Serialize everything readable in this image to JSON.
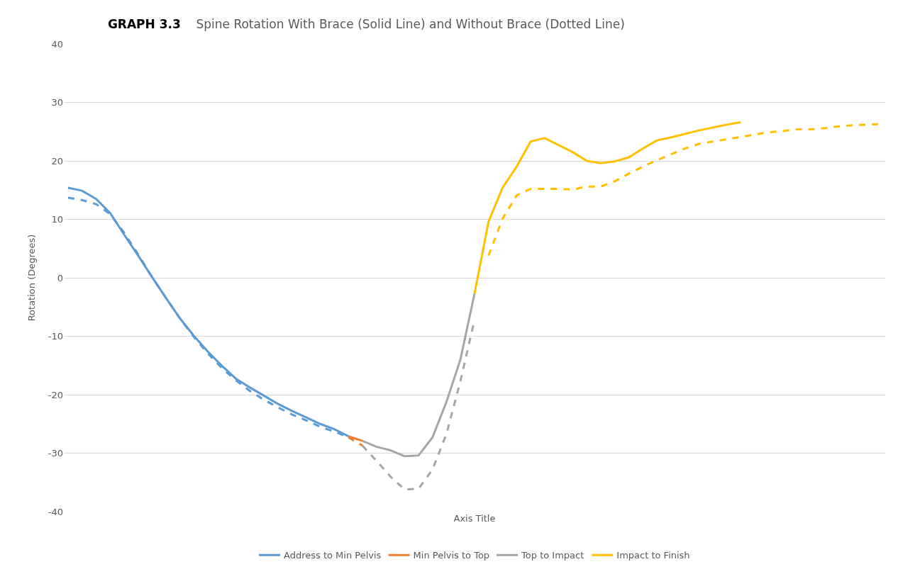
{
  "chart_data": {
    "type": "line",
    "title": "GRAPH 3.3",
    "subtitle": "Spine Rotation With Brace (Solid Line) and Without Brace (Dotted Line)",
    "xlabel": "Axis Title",
    "ylabel": "Rotation (Degrees)",
    "categories": [
      null,
      null,
      null,
      null,
      null,
      null,
      null,
      null,
      null,
      null,
      null,
      null,
      null,
      null,
      null,
      null,
      null,
      null,
      null,
      null,
      null,
      null,
      null,
      null,
      null,
      null,
      null,
      null,
      null,
      null,
      null,
      null,
      null,
      null,
      null,
      null,
      null,
      null,
      null,
      null,
      null,
      null,
      null,
      null,
      null,
      null,
      null,
      null,
      null,
      null,
      null,
      null,
      null,
      null,
      null,
      null,
      null,
      null,
      null
    ],
    "ylim": [
      -40,
      40
    ],
    "yticks": [
      -40,
      -30,
      -20,
      -10,
      0,
      10,
      20,
      30,
      40
    ],
    "grid": "y",
    "legend": "bottom",
    "marker": "none",
    "series": [
      {
        "name": "Address to Min Pelvis",
        "color": "#5b9bd5",
        "line_style": "solid",
        "values": [
          15.4,
          14.9,
          13.5,
          11.1,
          7.4,
          3.8,
          0.1,
          -3.5,
          -7.0,
          -10.0,
          -12.7,
          -15.1,
          -17.3,
          -18.8,
          -20.2,
          -21.6,
          -22.8,
          -23.9,
          -25.0,
          -25.9,
          -27.1,
          null,
          null,
          null,
          null,
          null,
          null,
          null,
          null,
          null,
          null,
          null,
          null,
          null,
          null,
          null,
          null,
          null,
          null,
          null,
          null,
          null,
          null,
          null,
          null,
          null,
          null,
          null,
          null,
          null,
          null,
          null,
          null,
          null,
          null,
          null,
          null,
          null,
          null
        ]
      },
      {
        "name": "Min Pelvis to Top",
        "color": "#ed7d31",
        "line_style": "solid",
        "values": [
          null,
          null,
          null,
          null,
          null,
          null,
          null,
          null,
          null,
          null,
          null,
          null,
          null,
          null,
          null,
          null,
          null,
          null,
          null,
          null,
          -27.1,
          -27.9,
          null,
          null,
          null,
          null,
          null,
          null,
          null,
          null,
          null,
          null,
          null,
          null,
          null,
          null,
          null,
          null,
          null,
          null,
          null,
          null,
          null,
          null,
          null,
          null,
          null,
          null,
          null,
          null,
          null,
          null,
          null,
          null,
          null,
          null,
          null,
          null,
          null
        ]
      },
      {
        "name": "Top to Impact",
        "color": "#a5a5a5",
        "line_style": "solid",
        "values": [
          null,
          null,
          null,
          null,
          null,
          null,
          null,
          null,
          null,
          null,
          null,
          null,
          null,
          null,
          null,
          null,
          null,
          null,
          null,
          null,
          null,
          -27.9,
          -28.9,
          -29.5,
          -30.5,
          -30.4,
          -27.3,
          -21.2,
          -13.9,
          -2.7,
          null,
          null,
          null,
          null,
          null,
          null,
          null,
          null,
          null,
          null,
          null,
          null,
          null,
          null,
          null,
          null,
          null,
          null,
          null,
          null,
          null,
          null,
          null,
          null,
          null,
          null,
          null,
          null,
          null
        ]
      },
      {
        "name": "Impact to Finish",
        "color": "#ffc000",
        "line_style": "solid",
        "values": [
          null,
          null,
          null,
          null,
          null,
          null,
          null,
          null,
          null,
          null,
          null,
          null,
          null,
          null,
          null,
          null,
          null,
          null,
          null,
          null,
          null,
          null,
          null,
          null,
          null,
          null,
          null,
          null,
          null,
          -2.7,
          9.6,
          15.4,
          19,
          23.3,
          23.9,
          22.7,
          21.5,
          20,
          19.6,
          19.9,
          20.6,
          22.1,
          23.5,
          24,
          24.6,
          25.2,
          25.7,
          26.2,
          26.6,
          null,
          null,
          null,
          null,
          null,
          null,
          null,
          null,
          null,
          null
        ]
      },
      {
        "color": "#5b9bd5",
        "line_style": "dashed",
        "values": [
          13.7,
          13.3,
          12.6,
          10.9,
          7.7,
          4.0,
          0.1,
          -3.5,
          -7.0,
          -10.2,
          -13.0,
          -15.5,
          -17.6,
          -19.4,
          -20.9,
          -22.2,
          -23.4,
          -24.4,
          -25.5,
          -26.3,
          -27.3,
          null,
          null,
          null,
          null,
          null,
          null,
          null,
          null,
          null,
          null,
          null,
          null,
          null,
          null,
          null,
          null,
          null,
          null,
          null,
          null,
          null,
          null,
          null,
          null,
          null,
          null,
          null,
          null,
          null,
          null,
          null,
          null,
          null,
          null,
          null,
          null,
          null,
          null
        ]
      },
      {
        "color": "#ed7d31",
        "line_style": "dashed",
        "values": [
          null,
          null,
          null,
          null,
          null,
          null,
          null,
          null,
          null,
          null,
          null,
          null,
          null,
          null,
          null,
          null,
          null,
          null,
          null,
          null,
          -27.3,
          -28.7,
          null,
          null,
          null,
          null,
          null,
          null,
          null,
          null,
          null,
          null,
          null,
          null,
          null,
          null,
          null,
          null,
          null,
          null,
          null,
          null,
          null,
          null,
          null,
          null,
          null,
          null,
          null,
          null,
          null,
          null,
          null,
          null,
          null,
          null,
          null,
          null,
          null
        ]
      },
      {
        "color": "#a5a5a5",
        "line_style": "dashed",
        "values": [
          null,
          null,
          null,
          null,
          null,
          null,
          null,
          null,
          null,
          null,
          null,
          null,
          null,
          null,
          null,
          null,
          null,
          null,
          null,
          null,
          null,
          -28.7,
          -31.3,
          -34,
          -36.2,
          -36.1,
          -32.8,
          -26.7,
          -17.6,
          -7.2,
          null,
          null,
          null,
          null,
          null,
          null,
          null,
          null,
          null,
          null,
          null,
          null,
          null,
          null,
          null,
          null,
          null,
          null,
          null,
          null,
          null,
          null,
          null,
          null,
          null,
          null,
          null,
          null,
          null
        ]
      },
      {
        "color": "#ffc000",
        "line_style": "dashed",
        "values": [
          null,
          null,
          null,
          null,
          null,
          null,
          null,
          null,
          null,
          null,
          null,
          null,
          null,
          null,
          null,
          null,
          null,
          null,
          null,
          null,
          null,
          null,
          null,
          null,
          null,
          null,
          null,
          null,
          null,
          null,
          3.8,
          10.1,
          14.1,
          15.2,
          15.2,
          15.2,
          15.1,
          15.6,
          15.6,
          16.5,
          17.8,
          19,
          20.1,
          21.1,
          22.1,
          22.9,
          23.3,
          23.7,
          24.1,
          24.5,
          24.9,
          25.1,
          25.4,
          25.4,
          25.6,
          25.9,
          26.1,
          26.2,
          26.3
        ]
      }
    ]
  }
}
